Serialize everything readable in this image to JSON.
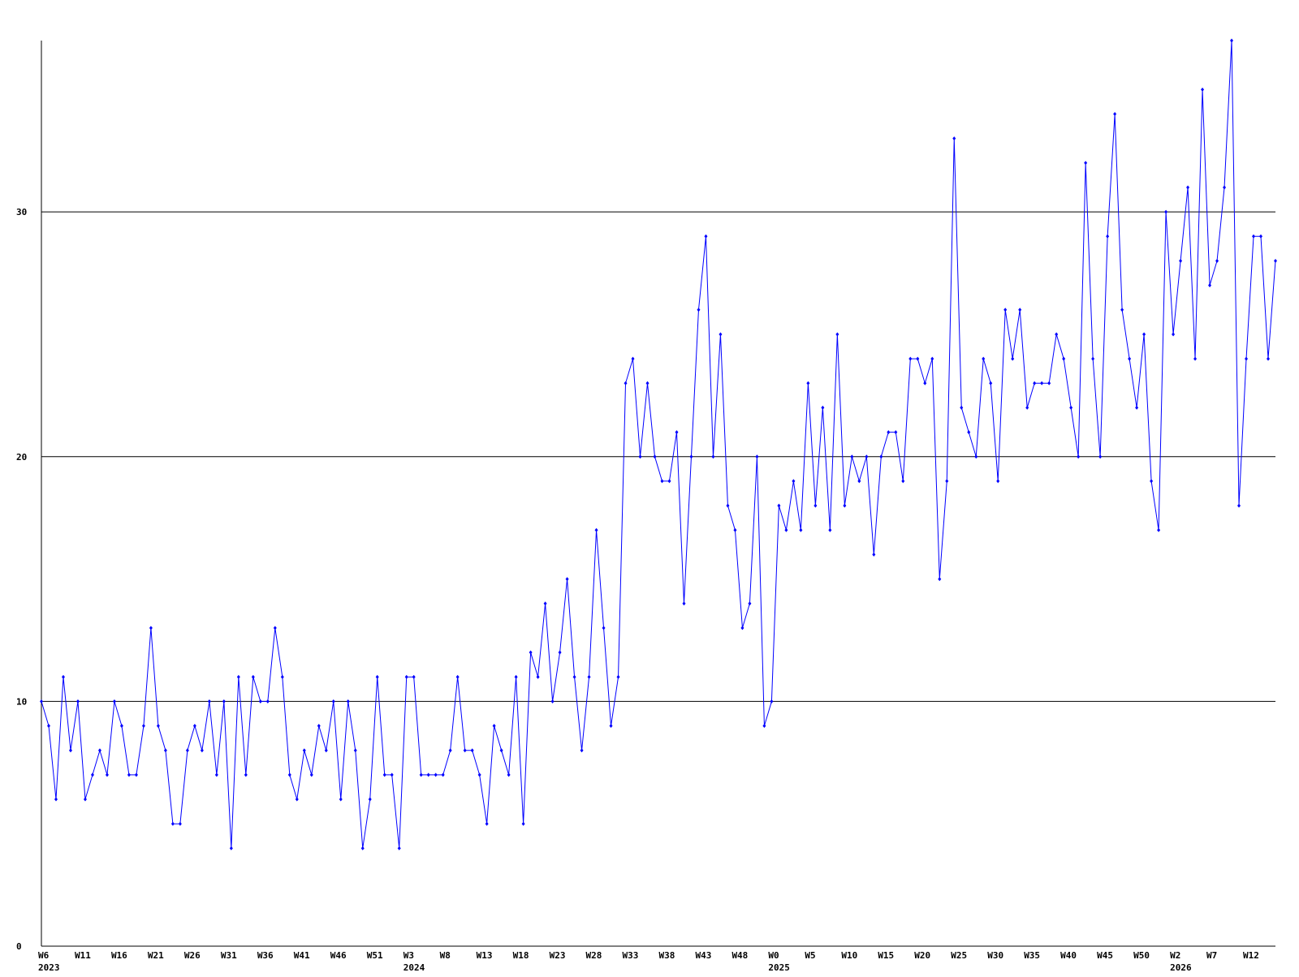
{
  "chart_data": {
    "type": "line",
    "categories": [
      "W6",
      null,
      null,
      null,
      null,
      "W11",
      null,
      null,
      null,
      null,
      "W16",
      null,
      null,
      null,
      null,
      "W21",
      null,
      null,
      null,
      null,
      "W26",
      null,
      null,
      null,
      null,
      "W31",
      null,
      null,
      null,
      null,
      "W36",
      null,
      null,
      null,
      null,
      "W41",
      null,
      null,
      null,
      null,
      "W46",
      null,
      null,
      null,
      null,
      "W51",
      null,
      null,
      null,
      null,
      "W3",
      null,
      null,
      null,
      null,
      "W8",
      null,
      null,
      null,
      null,
      "W13",
      null,
      null,
      null,
      null,
      "W18",
      null,
      null,
      null,
      null,
      "W23",
      null,
      null,
      null,
      null,
      "W28",
      null,
      null,
      null,
      null,
      "W33",
      null,
      null,
      null,
      null,
      "W38",
      null,
      null,
      null,
      null,
      "W43",
      null,
      null,
      null,
      null,
      "W48",
      null,
      null,
      null,
      null,
      "W0",
      null,
      null,
      null,
      null,
      "W5",
      null,
      null,
      null,
      null,
      "W10",
      null,
      null,
      null,
      null,
      "W15",
      null,
      null,
      null,
      null,
      "W20",
      null,
      null,
      null,
      null,
      "W25",
      null,
      null,
      null,
      null,
      "W30",
      null,
      null,
      null,
      null,
      "W35",
      null,
      null,
      null,
      null,
      "W40",
      null,
      null,
      null,
      null,
      "W45",
      null,
      null,
      null,
      null,
      "W50",
      null,
      null,
      null,
      null,
      "W2",
      null,
      null,
      null,
      null,
      "W7",
      null,
      null,
      null,
      null,
      "W12",
      null,
      null,
      null,
      null
    ],
    "years": [
      "2023",
      null,
      null,
      null,
      null,
      null,
      null,
      null,
      null,
      null,
      null,
      null,
      null,
      null,
      null,
      null,
      null,
      null,
      null,
      null,
      null,
      null,
      null,
      null,
      null,
      null,
      null,
      null,
      null,
      null,
      null,
      null,
      null,
      null,
      null,
      null,
      null,
      null,
      null,
      null,
      null,
      null,
      null,
      null,
      null,
      null,
      null,
      null,
      null,
      null,
      "2024",
      null,
      null,
      null,
      null,
      null,
      null,
      null,
      null,
      null,
      null,
      null,
      null,
      null,
      null,
      null,
      null,
      null,
      null,
      null,
      null,
      null,
      null,
      null,
      null,
      null,
      null,
      null,
      null,
      null,
      null,
      null,
      null,
      null,
      null,
      null,
      null,
      null,
      null,
      null,
      null,
      null,
      null,
      null,
      null,
      null,
      null,
      null,
      null,
      null,
      "2025",
      null,
      null,
      null,
      null,
      null,
      null,
      null,
      null,
      null,
      null,
      null,
      null,
      null,
      null,
      null,
      null,
      null,
      null,
      null,
      null,
      null,
      null,
      null,
      null,
      null,
      null,
      null,
      null,
      null,
      null,
      null,
      null,
      null,
      null,
      null,
      null,
      null,
      null,
      null,
      null,
      null,
      null,
      null,
      null,
      null,
      null,
      null,
      null,
      null,
      null,
      null,
      null,
      null,
      null,
      "2026",
      null,
      null,
      null,
      null,
      null,
      null,
      null,
      null,
      null,
      null,
      null,
      null,
      null,
      null
    ],
    "values": [
      10,
      9,
      6,
      11,
      8,
      10,
      6,
      7,
      8,
      7,
      10,
      9,
      7,
      7,
      9,
      13,
      9,
      8,
      5,
      5,
      8,
      9,
      8,
      10,
      7,
      10,
      4,
      11,
      7,
      11,
      10,
      10,
      13,
      11,
      7,
      6,
      8,
      7,
      9,
      8,
      10,
      6,
      10,
      8,
      4,
      6,
      11,
      7,
      7,
      4,
      11,
      11,
      7,
      7,
      7,
      7,
      8,
      11,
      8,
      8,
      7,
      5,
      9,
      8,
      7,
      11,
      5,
      12,
      11,
      14,
      10,
      12,
      15,
      11,
      8,
      11,
      17,
      13,
      9,
      11,
      23,
      24,
      20,
      23,
      20,
      19,
      19,
      21,
      14,
      20,
      26,
      29,
      20,
      25,
      18,
      17,
      13,
      14,
      20,
      9,
      10,
      18,
      17,
      19,
      17,
      23,
      18,
      22,
      17,
      25,
      18,
      20,
      19,
      20,
      16,
      20,
      21,
      21,
      19,
      24,
      24,
      23,
      24,
      15,
      19,
      33,
      22,
      21,
      20,
      24,
      23,
      19,
      26,
      24,
      26,
      22,
      23,
      23,
      23,
      25,
      24,
      22,
      20,
      32,
      24,
      20,
      29,
      34,
      26,
      24,
      22,
      25,
      19,
      17,
      30,
      25,
      28,
      31,
      24,
      35,
      27,
      28,
      31,
      37,
      18,
      24,
      29,
      29,
      24,
      28
    ],
    "color": "#0000ff",
    "ylim": [
      0,
      37
    ],
    "yticks": [
      0,
      10,
      20,
      30
    ],
    "grid": true
  }
}
